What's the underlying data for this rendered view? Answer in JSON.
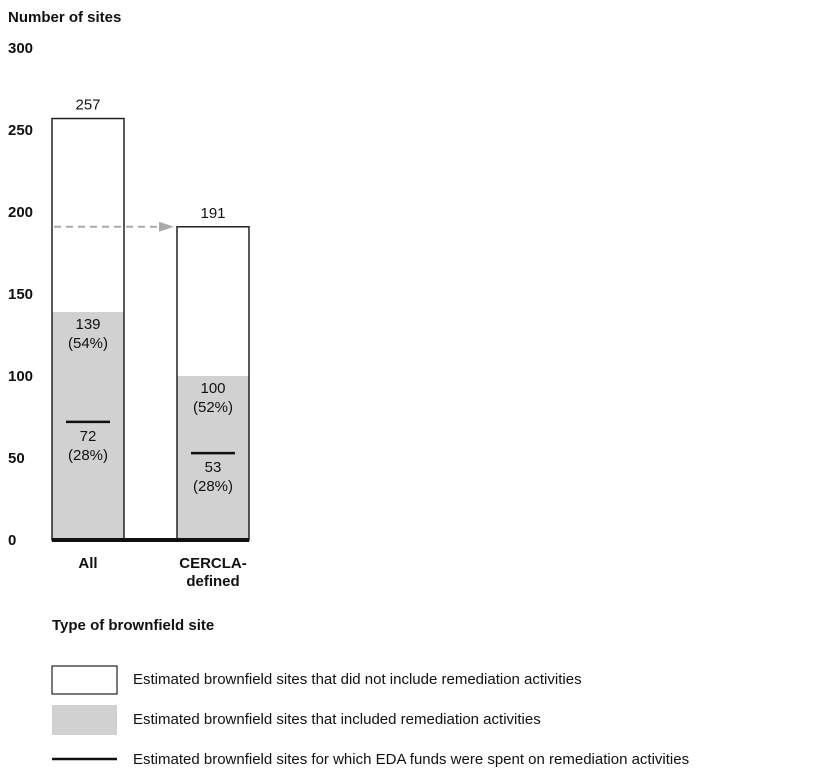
{
  "chart_data": {
    "type": "bar",
    "stacked": true,
    "ylabel": "Number of sites",
    "xlabel": "Type of brownfield site",
    "ylim": [
      0,
      300
    ],
    "yticks": [
      0,
      50,
      100,
      150,
      200,
      250,
      300
    ],
    "categories": [
      "All",
      "CERCLA-defined"
    ],
    "category_lines": [
      [
        "All"
      ],
      [
        "CERCLA-",
        "defined"
      ]
    ],
    "totals": [
      257,
      191
    ],
    "totals_labels": [
      "257",
      "191"
    ],
    "series": [
      {
        "name": "Estimated brownfield sites that did not include remediation activities",
        "values": [
          118,
          91
        ],
        "color": "#ffffff"
      },
      {
        "name": "Estimated brownfield sites that included remediation activities",
        "values": [
          139,
          100
        ],
        "labels": [
          [
            "139",
            "(54%)"
          ],
          [
            "100",
            "(52%)"
          ]
        ],
        "color": "#d1d1d1"
      }
    ],
    "markers": {
      "name": "Estimated brownfield sites for which EDA funds were spent on remediation activities",
      "values": [
        72,
        53
      ],
      "labels": [
        [
          "72",
          "(28%)"
        ],
        [
          "53",
          "(28%)"
        ]
      ],
      "color": "#111111"
    },
    "connector": {
      "from_category": "All",
      "to_category": "CERCLA-defined",
      "at_value": 191,
      "style": "dashed-arrow",
      "color": "#aaaaaa"
    },
    "legend_position": "bottom",
    "grid": false
  }
}
